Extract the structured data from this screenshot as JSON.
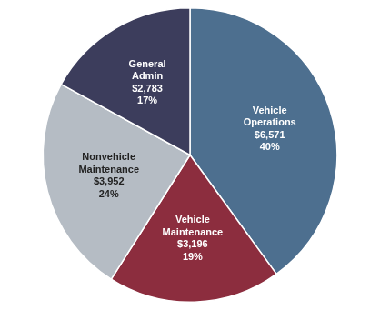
{
  "chart_data": {
    "type": "pie",
    "categories": [
      "Vehicle\nOperations\n$6,571\n40%",
      "Vehicle\nMaintenance\n$3,196\n19%",
      "Nonvehicle\nMaintenance\n$3,952\n24%",
      "General\nAdmin\n$2,783\n17%"
    ],
    "values": [
      40,
      19,
      24,
      17
    ],
    "colors": [
      "#4d6f8f",
      "#8c2d3e",
      "#b5bcc4",
      "#3c3d5c"
    ]
  }
}
